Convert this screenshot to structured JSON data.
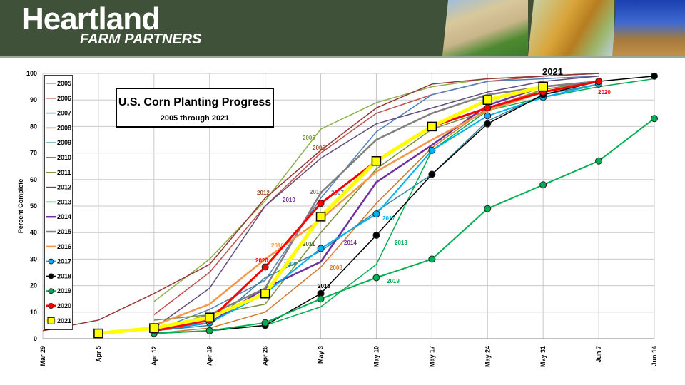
{
  "header": {
    "brand": "Heartland",
    "subbrand": "FARM PARTNERS"
  },
  "chart_data": {
    "type": "line",
    "title": "U.S. Corn Planting Progress",
    "subtitle": "2005 through 2021",
    "ylabel": "Percent Complete",
    "xlabel": "",
    "ylim": [
      0,
      100
    ],
    "yticks": [
      0,
      10,
      20,
      30,
      40,
      50,
      60,
      70,
      80,
      90,
      100
    ],
    "grid": true,
    "legend": "left",
    "categories": [
      "Mar 29",
      "Apr 5",
      "Apr 12",
      "Apr 19",
      "Apr 26",
      "May 3",
      "May 10",
      "May 17",
      "May 24",
      "May 31",
      "Jun 7",
      "Jun 14"
    ],
    "series": [
      {
        "name": "2005",
        "color": "#8db04a",
        "width": 1.5,
        "values": [
          null,
          null,
          14,
          30,
          52,
          79,
          89,
          95,
          98,
          99,
          100,
          null
        ],
        "label": "2005"
      },
      {
        "name": "2006",
        "color": "#c0504d",
        "width": 1.5,
        "values": [
          null,
          null,
          9,
          25,
          50,
          70,
          85,
          92,
          97,
          99,
          100,
          null
        ],
        "label": "2006"
      },
      {
        "name": "2007",
        "color": "#4f81bd",
        "width": 1.5,
        "values": [
          null,
          null,
          3,
          11,
          22,
          53,
          78,
          92,
          97,
          98,
          99,
          null
        ],
        "label": "2007"
      },
      {
        "name": "2008",
        "color": "#d07a30",
        "width": 1.5,
        "values": [
          null,
          null,
          2,
          4,
          10,
          27,
          51,
          72,
          87,
          94,
          97,
          null
        ],
        "label": "2008"
      },
      {
        "name": "2009",
        "color": "#31859c",
        "width": 1.5,
        "values": [
          null,
          null,
          3,
          5,
          23,
          33,
          48,
          62,
          82,
          92,
          96,
          null
        ],
        "label": "2009"
      },
      {
        "name": "2010",
        "color": "#604a7b",
        "width": 1.5,
        "values": [
          null,
          null,
          4,
          19,
          50,
          68,
          81,
          87,
          93,
          97,
          99,
          null
        ],
        "label": "2010"
      },
      {
        "name": "2011",
        "color": "#76923c",
        "width": 1.5,
        "values": [
          null,
          null,
          7,
          9,
          13,
          40,
          64,
          79,
          86,
          94,
          97,
          null
        ],
        "label": "2011"
      },
      {
        "name": "2012",
        "color": "#943634",
        "width": 1.5,
        "values": [
          3,
          7,
          17,
          28,
          53,
          71,
          87,
          96,
          98,
          99,
          100,
          null
        ],
        "label": "2012"
      },
      {
        "name": "2013",
        "color": "#00b050",
        "width": 1.5,
        "values": [
          null,
          null,
          2,
          3,
          5,
          12,
          28,
          71,
          86,
          91,
          95,
          98
        ],
        "label": "2013"
      },
      {
        "name": "2014",
        "color": "#7030a0",
        "width": 2.5,
        "values": [
          null,
          null,
          3,
          6,
          19,
          29,
          59,
          73,
          88,
          95,
          97,
          null
        ],
        "label": "2014"
      },
      {
        "name": "2015",
        "color": "#808080",
        "width": 2.5,
        "values": [
          null,
          null,
          3,
          9,
          19,
          55,
          75,
          85,
          92,
          95,
          97,
          null
        ],
        "label": "2015"
      },
      {
        "name": "2016",
        "color": "#f79646",
        "width": 2.5,
        "values": [
          null,
          null,
          5,
          13,
          30,
          45,
          63,
          75,
          86,
          93,
          97,
          null
        ],
        "label": "2016"
      },
      {
        "name": "2017",
        "color": "#00b0f0",
        "width": 2,
        "marker": "circle",
        "values": [
          null,
          null,
          3,
          6,
          17,
          34,
          47,
          71,
          84,
          91,
          96,
          null
        ],
        "label": "2017"
      },
      {
        "name": "2018",
        "color": "#000000",
        "width": 1.5,
        "marker": "circle",
        "values": [
          null,
          null,
          2,
          3,
          5,
          17,
          39,
          62,
          81,
          92,
          97,
          99
        ],
        "label": "2018"
      },
      {
        "name": "2019",
        "color": "#00b050",
        "width": 2,
        "marker": "circle",
        "values": [
          null,
          null,
          2,
          3,
          6,
          15,
          23,
          30,
          49,
          58,
          67,
          83
        ],
        "label": "2019"
      },
      {
        "name": "2020",
        "color": "#ff0000",
        "width": 3,
        "marker": "circle",
        "values": [
          null,
          null,
          3,
          7,
          27,
          51,
          67,
          80,
          87,
          93,
          97,
          null
        ],
        "label": "2020"
      },
      {
        "name": "2021",
        "color": "#ffff00",
        "width": 5,
        "marker": "square",
        "values": [
          null,
          2,
          4,
          8,
          17,
          46,
          67,
          80,
          90,
          95,
          null,
          null
        ],
        "label": "2021"
      }
    ]
  }
}
